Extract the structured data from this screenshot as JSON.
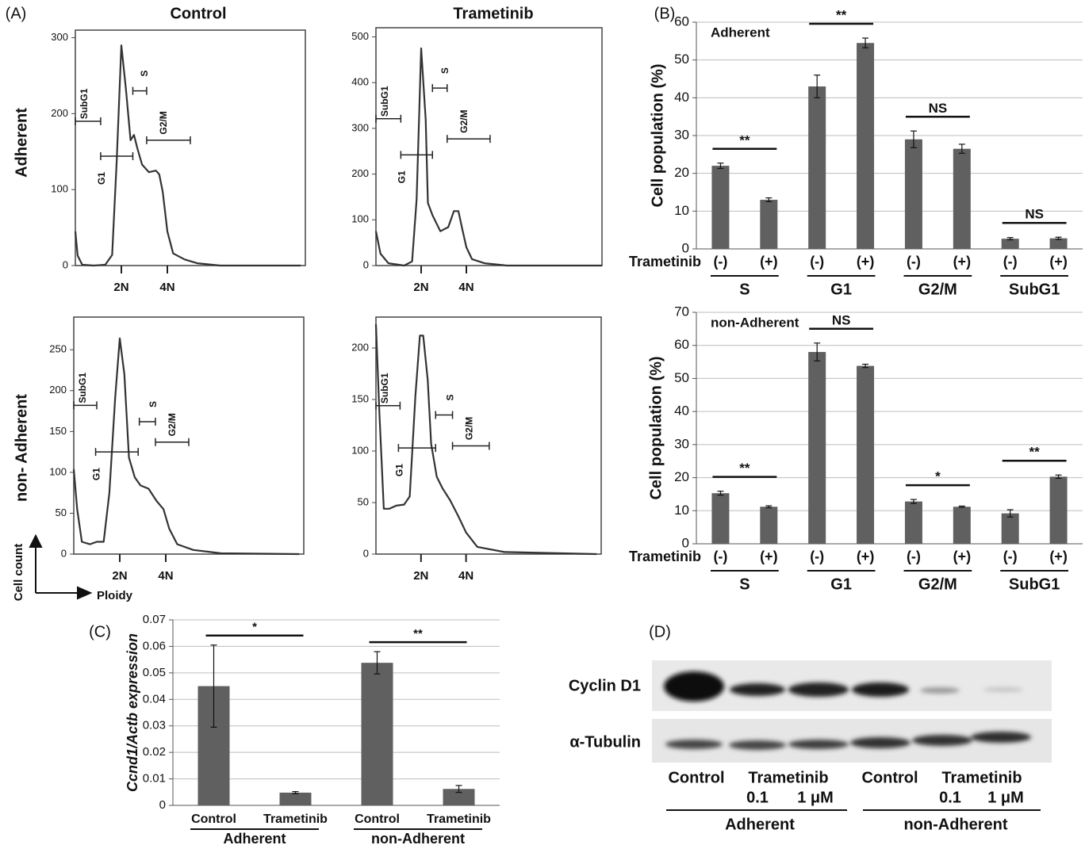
{
  "panel_labels": [
    "(A)",
    "(B)",
    "(C)",
    "(D)"
  ],
  "panel_a": {
    "columns": [
      "Control",
      "Trametinib"
    ],
    "rows": [
      "Adherent",
      "non- Adherent"
    ],
    "y_axis_label": "Cell count",
    "x_axis_label": "Ploidy"
  },
  "chart_data": [
    {
      "type": "line",
      "color": "#333333",
      "x": [
        0,
        0.1,
        0.3,
        0.8,
        1.3,
        1.6,
        1.8,
        2.0,
        2.2,
        2.4,
        2.55,
        2.7,
        2.9,
        3.2,
        3.5,
        3.65,
        3.8,
        4.0,
        4.25,
        4.75,
        5.3,
        6.3,
        9.8
      ],
      "values": [
        45,
        13,
        1,
        0,
        1,
        14,
        139,
        290,
        232,
        165,
        172,
        154,
        133,
        123,
        125,
        120,
        97,
        45,
        16,
        8,
        3,
        0,
        0
      ],
      "xlim": [
        0,
        10
      ],
      "xticks": [
        {
          "value": 2,
          "label": "2N"
        },
        {
          "value": 4,
          "label": "4N"
        }
      ],
      "ylim": [
        0,
        310
      ],
      "yticks": [
        0,
        100,
        200,
        300
      ],
      "gates": [
        {
          "label": "SubG1",
          "x": [
            0,
            1.1
          ],
          "y": 190
        },
        {
          "label": "G1",
          "x": [
            1.1,
            2.5
          ],
          "y": 144
        },
        {
          "label": "S",
          "x": [
            2.5,
            3.1
          ],
          "y": 230
        },
        {
          "label": "G2/M",
          "x": [
            3.1,
            5.0
          ],
          "y": 165
        }
      ]
    },
    {
      "type": "line",
      "color": "#333333",
      "x": [
        0,
        0.2,
        0.55,
        1.25,
        1.6,
        1.8,
        2.0,
        2.2,
        2.3,
        2.5,
        2.85,
        3.2,
        3.45,
        3.65,
        3.8,
        4.0,
        4.25,
        4.8,
        5.8,
        10
      ],
      "values": [
        75,
        26,
        5,
        0,
        9,
        145,
        475,
        320,
        137,
        110,
        75,
        84,
        119,
        119,
        84,
        40,
        14,
        5,
        0,
        0
      ],
      "xlim": [
        0,
        10
      ],
      "xticks": [
        {
          "value": 2,
          "label": "2N"
        },
        {
          "value": 4,
          "label": "4N"
        }
      ],
      "ylim": [
        0,
        520
      ],
      "yticks": [
        0,
        100,
        200,
        300,
        400,
        500
      ],
      "gates": [
        {
          "label": "SubG1",
          "x": [
            0,
            1.1
          ],
          "y": 321
        },
        {
          "label": "G1",
          "x": [
            1.1,
            2.5
          ],
          "y": 242
        },
        {
          "label": "S",
          "x": [
            2.5,
            3.15
          ],
          "y": 388
        },
        {
          "label": "G2/M",
          "x": [
            3.15,
            5.05
          ],
          "y": 277
        }
      ]
    },
    {
      "type": "line",
      "color": "#333333",
      "x": [
        0,
        0.15,
        0.35,
        0.7,
        1.0,
        1.3,
        1.55,
        1.8,
        2.0,
        2.2,
        2.4,
        2.65,
        2.9,
        3.25,
        3.6,
        3.9,
        4.15,
        4.5,
        5.2,
        6.4,
        9.8
      ],
      "values": [
        104,
        55,
        15,
        12,
        15,
        15,
        75,
        191,
        264,
        220,
        118,
        94,
        84,
        80,
        65,
        55,
        31,
        12,
        5,
        1,
        0
      ],
      "xlim": [
        0,
        10
      ],
      "xticks": [
        {
          "value": 2,
          "label": "2N"
        },
        {
          "value": 4,
          "label": "4N"
        }
      ],
      "ylim": [
        0,
        290
      ],
      "yticks": [
        0,
        50,
        100,
        150,
        200,
        250
      ],
      "gates": [
        {
          "label": "SubG1",
          "x": [
            0,
            1.0
          ],
          "y": 182
        },
        {
          "label": "G1",
          "x": [
            0.95,
            2.8
          ],
          "y": 125
        },
        {
          "label": "S",
          "x": [
            2.85,
            3.55
          ],
          "y": 162
        },
        {
          "label": "G2/M",
          "x": [
            3.55,
            5.0
          ],
          "y": 137
        }
      ]
    },
    {
      "type": "line",
      "color": "#333333",
      "x": [
        0,
        0.15,
        0.35,
        0.6,
        0.9,
        1.25,
        1.5,
        1.75,
        1.95,
        2.1,
        2.3,
        2.45,
        2.7,
        2.95,
        3.3,
        3.65,
        4.0,
        4.5,
        5.7,
        9.8
      ],
      "values": [
        223,
        138,
        44,
        44,
        47,
        48,
        56,
        153,
        212,
        212,
        169,
        107,
        75,
        64,
        52,
        37,
        21,
        7,
        2,
        0
      ],
      "xlim": [
        0,
        10
      ],
      "xticks": [
        {
          "value": 2,
          "label": "2N"
        },
        {
          "value": 4,
          "label": "4N"
        }
      ],
      "ylim": [
        0,
        230
      ],
      "yticks": [
        0,
        50,
        100,
        150,
        200
      ],
      "gates": [
        {
          "label": "SubG1",
          "x": [
            0,
            1.07
          ],
          "y": 144
        },
        {
          "label": "G1",
          "x": [
            1.0,
            2.65
          ],
          "y": 103
        },
        {
          "label": "S",
          "x": [
            2.65,
            3.4
          ],
          "y": 135
        },
        {
          "label": "G2/M",
          "x": [
            3.4,
            5.03
          ],
          "y": 105
        }
      ]
    },
    {
      "type": "bar",
      "annotation": "Adherent",
      "ylabel": "Cell population (%)",
      "row_label": "Trametinib",
      "categories": [
        "(-)",
        "(+)",
        "(-)",
        "(+)",
        "(-)",
        "(+)",
        "(-)",
        "(+)"
      ],
      "values": [
        22,
        13,
        43,
        54.5,
        29,
        26.5,
        2.7,
        2.8
      ],
      "errors": [
        0.7,
        0.5,
        3,
        1.3,
        2.2,
        1.2,
        0.3,
        0.3
      ],
      "groups": [
        "S",
        "G1",
        "G2/M",
        "SubG1"
      ],
      "significance": [
        "**",
        "**",
        "NS",
        "NS"
      ],
      "color": "#606060",
      "ylim": [
        0,
        60
      ],
      "yticks": [
        0,
        10,
        20,
        30,
        40,
        50,
        60
      ],
      "grid": true
    },
    {
      "type": "bar",
      "annotation": "non-Adherent",
      "ylabel": "Cell population (%)",
      "row_label": "Trametinib",
      "categories": [
        "(-)",
        "(+)",
        "(-)",
        "(+)",
        "(-)",
        "(+)",
        "(-)",
        "(+)"
      ],
      "values": [
        15.3,
        11.2,
        58,
        53.8,
        12.8,
        11.2,
        9.2,
        20.3
      ],
      "errors": [
        0.6,
        0.3,
        2.7,
        0.5,
        0.6,
        0.2,
        1.1,
        0.5
      ],
      "groups": [
        "S",
        "G1",
        "G2/M",
        "SubG1"
      ],
      "significance": [
        "**",
        "NS",
        "*",
        "**"
      ],
      "color": "#606060",
      "ylim": [
        0,
        70
      ],
      "yticks": [
        0,
        10,
        20,
        30,
        40,
        50,
        60,
        70
      ],
      "grid": true
    },
    {
      "type": "bar",
      "ylabel": "Ccnd1/Actb expression",
      "categories": [
        "Control",
        "Trametinib",
        "Control",
        "Trametinib"
      ],
      "values": [
        0.045,
        0.0048,
        0.0538,
        0.0062
      ],
      "errors": [
        0.0155,
        0.0004,
        0.0042,
        0.0013
      ],
      "groups": [
        "Adherent",
        "non-Adherent"
      ],
      "significance": [
        "*",
        "**"
      ],
      "color": "#606060",
      "ylim": [
        0,
        0.07
      ],
      "yticks": [
        0,
        0.01,
        0.02,
        0.03,
        0.04,
        0.05,
        0.06,
        0.07
      ],
      "grid": true
    }
  ],
  "blot": {
    "rows": [
      "Cyclin D1",
      "α-Tubulin"
    ],
    "lanes": [
      "Control",
      "Trametinib",
      "0.1",
      "1 μM",
      "Control",
      "Trametinib",
      "0.1",
      "1 μM"
    ],
    "groups": [
      "Adherent",
      "non-Adherent"
    ]
  }
}
